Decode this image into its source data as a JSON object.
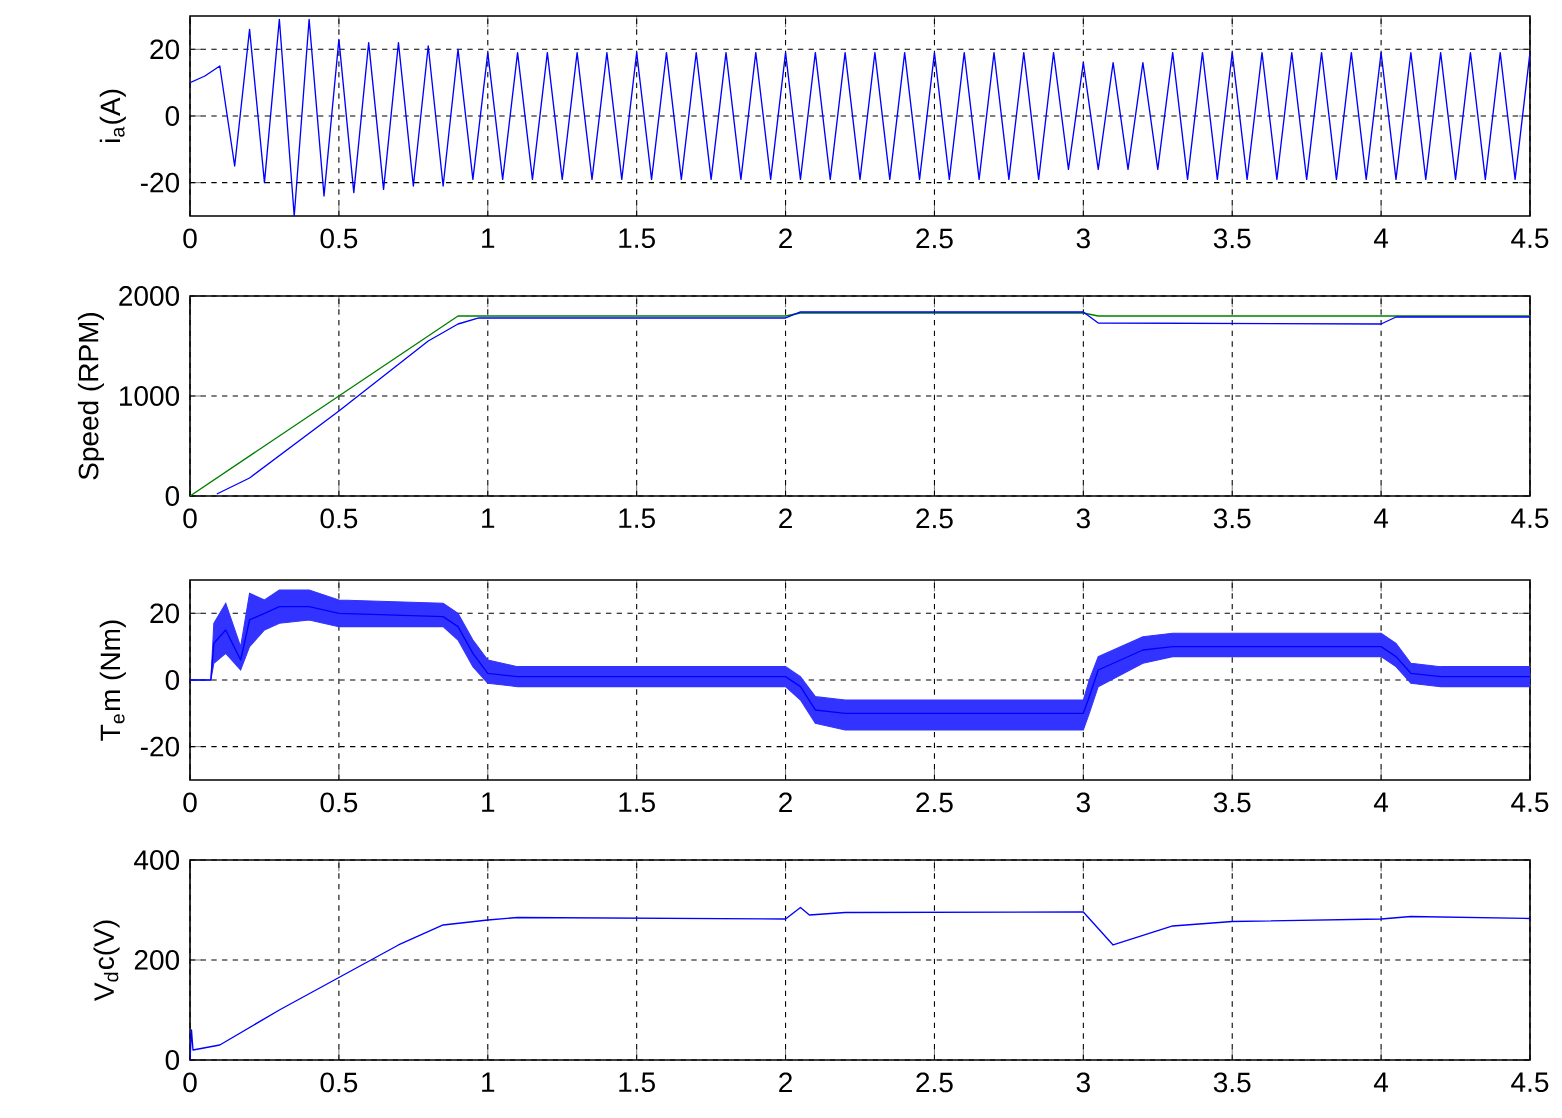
{
  "chart_data": [
    {
      "type": "line",
      "ylabel": "i$_{a}$(A)",
      "xlim": [
        0,
        4.5
      ],
      "xticks": [
        0,
        0.5,
        1,
        1.5,
        2,
        2.5,
        3,
        3.5,
        4,
        4.5
      ],
      "ylim": [
        -30,
        30
      ],
      "yticks": [
        -20,
        0,
        20
      ],
      "grid": true,
      "series": [
        {
          "color": "#0000ff",
          "x": [
            0,
            0.05,
            0.1,
            0.15,
            0.2,
            0.25,
            0.3,
            0.35,
            0.4,
            0.45,
            0.5,
            0.55,
            0.6,
            0.65,
            0.7,
            0.75,
            0.8,
            0.85,
            0.9,
            0.95,
            1.0,
            1.05,
            1.1,
            1.15,
            1.2,
            1.25,
            1.3,
            1.35,
            1.4,
            1.45,
            1.5,
            1.55,
            1.6,
            1.65,
            1.7,
            1.75,
            1.8,
            1.85,
            1.9,
            1.95,
            2.0,
            2.05,
            2.1,
            2.15,
            2.2,
            2.25,
            2.3,
            2.35,
            2.4,
            2.45,
            2.5,
            2.55,
            2.6,
            2.65,
            2.7,
            2.75,
            2.8,
            2.85,
            2.9,
            2.95,
            3.0,
            3.05,
            3.1,
            3.15,
            3.2,
            3.25,
            3.3,
            3.35,
            3.4,
            3.45,
            3.5,
            3.55,
            3.6,
            3.65,
            3.7,
            3.75,
            3.8,
            3.85,
            3.9,
            3.95,
            4.0,
            4.05,
            4.1,
            4.15,
            4.2,
            4.25,
            4.3,
            4.35,
            4.4,
            4.45,
            4.5
          ],
          "values": [
            10,
            12,
            15,
            -15,
            26,
            -20,
            29,
            -30,
            29,
            -24,
            23,
            -23,
            22,
            -22,
            22,
            -21,
            21,
            -21,
            20,
            -19,
            19,
            -19,
            19,
            -19,
            19,
            -19,
            19,
            -19,
            19,
            -19,
            19,
            -19,
            19,
            -19,
            19,
            -19,
            19,
            -19,
            19,
            -19,
            19,
            -19,
            19,
            -19,
            19,
            -19,
            19,
            -19,
            19,
            -19,
            19,
            -19,
            19,
            -19,
            19,
            -19,
            19,
            -19,
            19,
            -16,
            16,
            -16,
            16,
            -16,
            16,
            -16,
            19,
            -19,
            19,
            -19,
            19,
            -19,
            19,
            -19,
            19,
            -19,
            19,
            -19,
            19,
            -19,
            19,
            -19,
            19,
            -19,
            19,
            -19,
            19,
            -19,
            19,
            -19,
            19
          ]
        }
      ]
    },
    {
      "type": "line",
      "ylabel": "Speed (RPM)",
      "xlim": [
        0,
        4.5
      ],
      "xticks": [
        0,
        0.5,
        1,
        1.5,
        2,
        2.5,
        3,
        3.5,
        4,
        4.5
      ],
      "ylim": [
        0,
        2000
      ],
      "yticks": [
        0,
        1000,
        2000
      ],
      "grid": true,
      "series": [
        {
          "color": "#008000",
          "x": [
            0,
            0.9,
            2.0,
            2.05,
            3.0,
            3.05,
            4.5
          ],
          "values": [
            0,
            1800,
            1800,
            1830,
            1830,
            1800,
            1800
          ]
        },
        {
          "color": "#0000ff",
          "x": [
            0.09,
            0.2,
            0.5,
            0.8,
            0.9,
            0.97,
            2.0,
            2.05,
            3.0,
            3.05,
            4.0,
            4.05,
            4.5
          ],
          "values": [
            20,
            180,
            850,
            1550,
            1720,
            1780,
            1780,
            1840,
            1840,
            1730,
            1720,
            1790,
            1790
          ]
        }
      ]
    },
    {
      "type": "line",
      "ylabel": "T$_{e}$m (Nm)",
      "xlim": [
        0,
        4.5
      ],
      "xticks": [
        0,
        0.5,
        1,
        1.5,
        2,
        2.5,
        3,
        3.5,
        4,
        4.5
      ],
      "ylim": [
        -30,
        30
      ],
      "yticks": [
        -20,
        0,
        20
      ],
      "grid": true,
      "series": [
        {
          "color": "#0000ff",
          "x": [
            0,
            0.07,
            0.08,
            0.12,
            0.17,
            0.2,
            0.25,
            0.3,
            0.4,
            0.5,
            0.85,
            0.9,
            0.95,
            1.0,
            1.1,
            2.0,
            2.05,
            2.1,
            2.2,
            3.0,
            3.02,
            3.05,
            3.2,
            3.3,
            4.0,
            4.05,
            4.1,
            4.2,
            4.5
          ],
          "values": [
            0,
            0,
            11,
            15,
            6,
            18,
            20,
            22,
            22,
            20,
            19,
            16,
            8,
            2,
            1,
            1,
            -2,
            -9,
            -10,
            -10,
            -5,
            3,
            9,
            10,
            10,
            7,
            2,
            1,
            1
          ],
          "lower": [
            0,
            0,
            5,
            8,
            3,
            10,
            15,
            17,
            18,
            16,
            16,
            12,
            4,
            -1,
            -2,
            -2,
            -6,
            -13,
            -15,
            -15,
            -10,
            -2,
            5,
            7,
            7,
            4,
            -1,
            -2,
            -2
          ],
          "upper": [
            0,
            0,
            17,
            23,
            10,
            26,
            24,
            27,
            27,
            24,
            23,
            20,
            12,
            6,
            4,
            4,
            1,
            -5,
            -6,
            -6,
            0,
            7,
            13,
            14,
            14,
            11,
            5,
            4,
            4
          ]
        }
      ]
    },
    {
      "type": "line",
      "ylabel": "V$_{d}$c(V)",
      "xlim": [
        0,
        4.5
      ],
      "xticks": [
        0,
        0.5,
        1,
        1.5,
        2,
        2.5,
        3,
        3.5,
        4,
        4.5
      ],
      "ylim": [
        0,
        400
      ],
      "yticks": [
        0,
        200,
        400
      ],
      "grid": true,
      "series": [
        {
          "color": "#0000ff",
          "x": [
            0,
            0.005,
            0.01,
            0.1,
            0.3,
            0.5,
            0.7,
            0.85,
            1.0,
            1.1,
            2.0,
            2.05,
            2.08,
            2.2,
            3.0,
            3.1,
            3.3,
            3.5,
            4.0,
            4.1,
            4.5
          ],
          "values": [
            0,
            60,
            20,
            30,
            100,
            165,
            230,
            270,
            280,
            285,
            282,
            305,
            290,
            295,
            296,
            230,
            268,
            277,
            282,
            287,
            283
          ]
        }
      ]
    }
  ]
}
